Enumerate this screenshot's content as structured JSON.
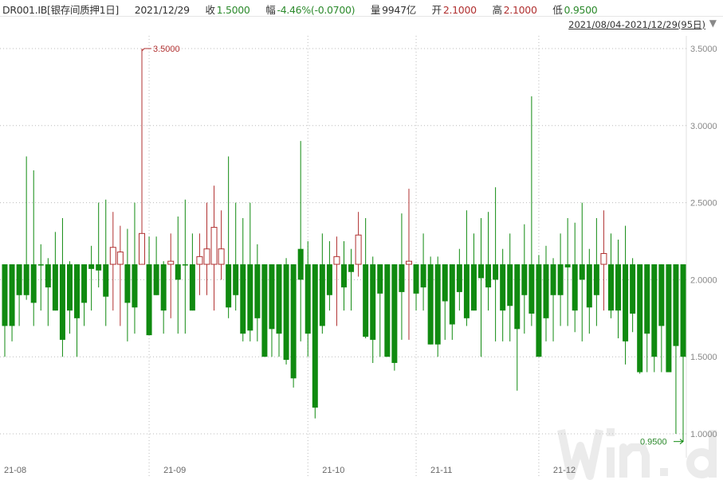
{
  "header": {
    "symbol": "DR001.IB[银存间质押1日]",
    "date": "2021/12/29",
    "close_label": "收",
    "close": "1.5000",
    "change_label": "幅",
    "change": "-4.46%(-0.0700)",
    "volume_label": "量",
    "volume": "9947亿",
    "open_label": "开",
    "open": "2.1000",
    "high_label": "高",
    "high": "2.1000",
    "low_label": "低",
    "low": "0.9500"
  },
  "range_selector": {
    "label": "2021/08/04-2021/12/29(95日)",
    "icon": "triangle-down-icon"
  },
  "watermark": "Wind",
  "colors": {
    "up": "#b03030",
    "down": "#108a10",
    "grid": "#bbbbbb",
    "axis_text": "#888888"
  },
  "chart_data": {
    "type": "candlestick",
    "title": "",
    "ylim": [
      0.9,
      3.6
    ],
    "yticks": [
      "1.0000",
      "1.5000",
      "2.0000",
      "2.5000",
      "3.0000",
      "3.5000"
    ],
    "ytick_values": [
      1.0,
      1.5,
      2.0,
      2.5,
      3.0,
      3.5
    ],
    "xticks": [
      {
        "label": "21-08",
        "index": 0
      },
      {
        "label": "21-09",
        "index": 20
      },
      {
        "label": "21-10",
        "index": 42
      },
      {
        "label": "21-11",
        "index": 57
      },
      {
        "label": "21-12",
        "index": 74
      }
    ],
    "grid": true,
    "annotations": {
      "max": "3.5000",
      "min": "0.9500"
    },
    "ohlc": [
      [
        2.1,
        2.1,
        1.5,
        1.7
      ],
      [
        2.1,
        2.1,
        1.6,
        1.7
      ],
      [
        2.1,
        2.1,
        1.7,
        1.9
      ],
      [
        2.1,
        2.8,
        1.87,
        1.9
      ],
      [
        2.1,
        2.71,
        1.7,
        1.85
      ],
      [
        2.1,
        2.23,
        1.8,
        2.1
      ],
      [
        2.1,
        2.14,
        1.7,
        1.95
      ],
      [
        2.1,
        2.31,
        1.8,
        1.8
      ],
      [
        2.1,
        2.4,
        1.5,
        1.61
      ],
      [
        2.1,
        2.12,
        1.65,
        1.8
      ],
      [
        2.1,
        2.1,
        1.5,
        1.75
      ],
      [
        2.1,
        2.1,
        1.7,
        1.85
      ],
      [
        2.1,
        2.22,
        1.8,
        2.07
      ],
      [
        2.1,
        2.5,
        1.95,
        2.06
      ],
      [
        2.1,
        2.52,
        1.7,
        1.89
      ],
      [
        2.1,
        2.44,
        1.8,
        2.21
      ],
      [
        2.1,
        2.35,
        1.7,
        2.18
      ],
      [
        2.1,
        2.33,
        1.6,
        1.85
      ],
      [
        2.1,
        2.5,
        1.65,
        1.82
      ],
      [
        2.1,
        3.5,
        2.1,
        2.3
      ],
      [
        2.1,
        2.28,
        1.64,
        1.64
      ],
      [
        2.1,
        2.28,
        1.9,
        1.9
      ],
      [
        2.1,
        2.12,
        1.65,
        1.8
      ],
      [
        2.1,
        2.3,
        1.75,
        2.12
      ],
      [
        2.1,
        2.41,
        1.65,
        2.0
      ],
      [
        2.1,
        2.52,
        1.65,
        2.1
      ],
      [
        2.1,
        2.3,
        1.8,
        1.8
      ],
      [
        2.1,
        2.3,
        1.9,
        2.15
      ],
      [
        2.1,
        2.5,
        1.9,
        2.2
      ],
      [
        2.1,
        2.61,
        1.8,
        2.34
      ],
      [
        2.1,
        2.45,
        2.0,
        2.2
      ],
      [
        2.1,
        2.8,
        1.75,
        1.82
      ],
      [
        2.1,
        2.5,
        1.8,
        1.9
      ],
      [
        2.1,
        2.4,
        1.6,
        1.65
      ],
      [
        2.1,
        2.5,
        1.6,
        1.67
      ],
      [
        2.1,
        2.23,
        1.6,
        1.75
      ],
      [
        2.1,
        2.1,
        1.5,
        1.5
      ],
      [
        2.1,
        2.1,
        1.5,
        1.68
      ],
      [
        2.1,
        2.1,
        1.5,
        1.65
      ],
      [
        2.1,
        2.14,
        1.45,
        1.48
      ],
      [
        2.1,
        2.1,
        1.3,
        1.36
      ],
      [
        2.2,
        2.9,
        1.6,
        2.0
      ],
      [
        2.1,
        2.25,
        1.5,
        1.65
      ],
      [
        2.1,
        2.1,
        1.1,
        1.17
      ],
      [
        2.1,
        2.3,
        1.65,
        1.7
      ],
      [
        2.1,
        2.25,
        1.8,
        1.9
      ],
      [
        2.1,
        2.28,
        1.7,
        2.15
      ],
      [
        2.1,
        2.25,
        1.8,
        1.95
      ],
      [
        2.1,
        2.2,
        1.8,
        2.05
      ],
      [
        2.1,
        2.44,
        2.02,
        2.29
      ],
      [
        2.1,
        2.4,
        1.62,
        1.63
      ],
      [
        2.1,
        2.15,
        1.46,
        1.61
      ],
      [
        2.1,
        2.1,
        1.5,
        1.91
      ],
      [
        2.1,
        2.1,
        1.5,
        1.5
      ],
      [
        2.1,
        2.1,
        1.41,
        1.46
      ],
      [
        2.1,
        2.43,
        1.61,
        1.92
      ],
      [
        2.1,
        2.59,
        1.61,
        2.12
      ],
      [
        2.1,
        2.1,
        1.8,
        1.91
      ],
      [
        2.1,
        2.3,
        1.8,
        1.95
      ],
      [
        2.1,
        2.15,
        1.58,
        1.58
      ],
      [
        2.1,
        2.15,
        1.5,
        1.58
      ],
      [
        2.1,
        2.1,
        1.61,
        1.86
      ],
      [
        2.1,
        2.1,
        1.61,
        1.71
      ],
      [
        2.1,
        2.2,
        1.8,
        1.92
      ],
      [
        2.1,
        2.45,
        1.7,
        1.75
      ],
      [
        2.1,
        2.3,
        1.8,
        1.8
      ],
      [
        2.1,
        2.4,
        1.5,
        2.01
      ],
      [
        2.1,
        2.44,
        1.8,
        1.95
      ],
      [
        2.1,
        2.6,
        1.6,
        2.0
      ],
      [
        2.1,
        2.2,
        1.6,
        1.8
      ],
      [
        2.1,
        2.3,
        1.6,
        1.83
      ],
      [
        2.1,
        2.1,
        1.28,
        1.68
      ],
      [
        2.1,
        2.36,
        1.65,
        1.9
      ],
      [
        2.1,
        3.19,
        1.7,
        1.78
      ],
      [
        2.1,
        2.16,
        1.5,
        1.5
      ],
      [
        2.1,
        2.22,
        1.6,
        1.75
      ],
      [
        2.1,
        2.14,
        1.6,
        1.9
      ],
      [
        2.1,
        2.3,
        1.7,
        1.9
      ],
      [
        2.1,
        2.4,
        1.7,
        2.08
      ],
      [
        2.1,
        2.37,
        1.66,
        1.8
      ],
      [
        2.1,
        2.5,
        1.6,
        2.0
      ],
      [
        2.1,
        2.2,
        1.65,
        1.82
      ],
      [
        2.1,
        2.4,
        1.7,
        1.9
      ],
      [
        2.1,
        2.45,
        1.8,
        2.17
      ],
      [
        2.1,
        2.3,
        1.75,
        1.8
      ],
      [
        2.1,
        2.26,
        1.62,
        1.8
      ],
      [
        2.1,
        2.35,
        1.45,
        1.6
      ],
      [
        2.1,
        2.14,
        1.66,
        1.78
      ],
      [
        2.1,
        2.1,
        1.39,
        1.4
      ],
      [
        2.1,
        2.1,
        1.4,
        1.65
      ],
      [
        2.1,
        2.1,
        1.4,
        1.5
      ],
      [
        2.1,
        2.1,
        1.4,
        1.7
      ],
      [
        2.1,
        2.1,
        1.4,
        1.4
      ],
      [
        2.1,
        2.1,
        1.0,
        1.57
      ],
      [
        2.1,
        2.1,
        0.95,
        1.5
      ]
    ]
  }
}
